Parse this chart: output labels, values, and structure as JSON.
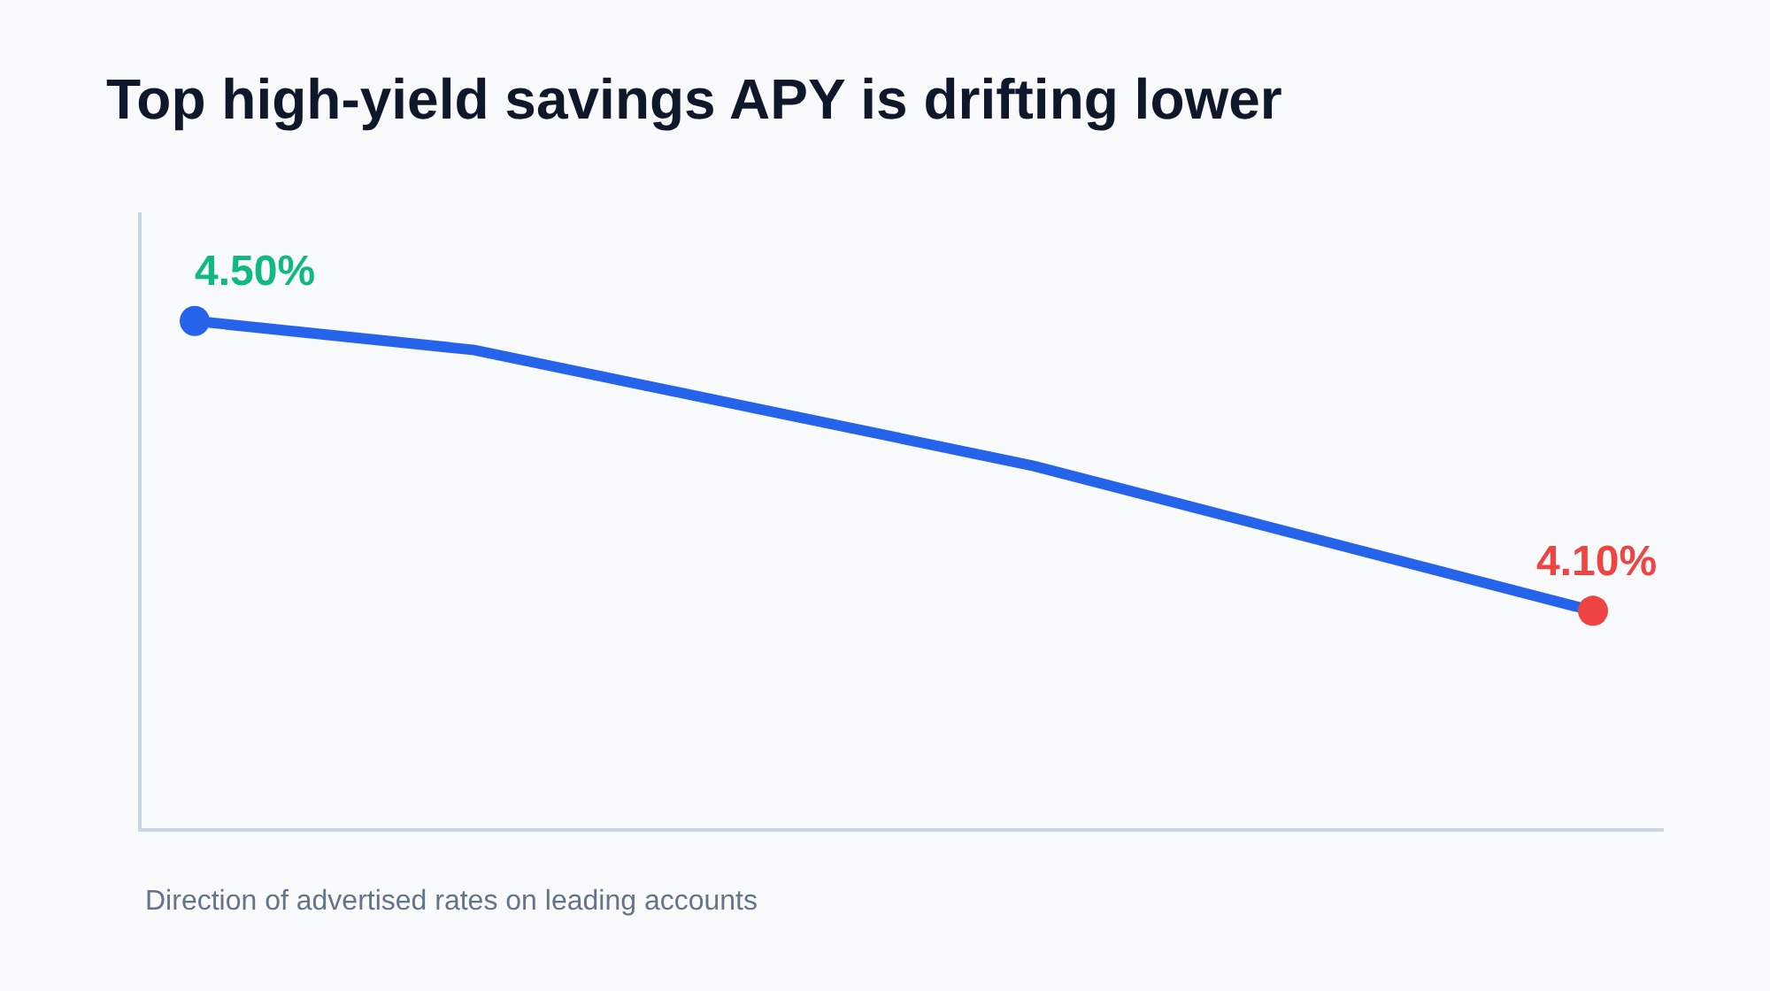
{
  "chart_data": {
    "type": "line",
    "title": "Top high-yield savings APY is drifting lower",
    "categories": [
      null,
      null,
      null,
      null,
      null,
      null
    ],
    "series": [
      {
        "color": "#2563eb",
        "values": [
          4.5,
          4.46,
          4.38,
          4.3,
          4.2,
          4.1
        ],
        "value_labels": [
          "4.50%",
          null,
          null,
          null,
          null,
          "4.10%"
        ],
        "colors": [
          "#2563eb",
          null,
          null,
          null,
          null,
          "#ef4444"
        ]
      }
    ],
    "ylim": [
      3.8,
      4.65
    ],
    "tick_labels": false,
    "grid": false,
    "line_style": "solid",
    "annotations": [
      "Direction of advertised rates on leading accounts"
    ]
  }
}
